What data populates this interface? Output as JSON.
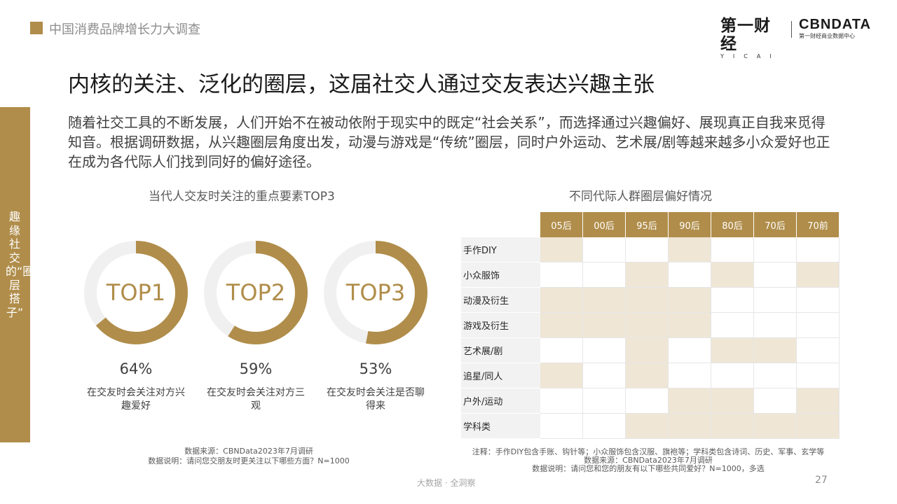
{
  "header": {
    "report_title": "中国消费品牌增长力大调查",
    "logo_yicai": "第一财经",
    "logo_yicai_sub": "YICAI",
    "logo_cbn": "CBNDATA",
    "logo_cbn_sub": "第一财经商业数据中心"
  },
  "headline": "内核的关注、泛化的圈层，这届社交人通过交友表达兴趣主张",
  "intro": "随着社交工具的不断发展，人们开始不在被动依附于现实中的既定“社会关系”，而选择通过兴趣偏好、展现真正自我来觅得知音。根据调研数据，从兴趣圈层角度出发，动漫与游戏是“传统”圈层，同时户外运动、艺术展/剧等越来越多小众爱好也正在成为各代际人们找到同好的偏好途径。",
  "side_label": "趣缘社交的“圈层搭子”",
  "colors": {
    "accent": "#b08d4a",
    "track": "#f0f0f0",
    "cell_on": "#efe6d6"
  },
  "chart_data": [
    {
      "type": "pie",
      "title": "当代人交友时关注的重点要素TOP3",
      "items": [
        {
          "rank": "TOP1",
          "value": 64,
          "value_label": "64%",
          "label": "在交友时会关注对方兴趣爱好"
        },
        {
          "rank": "TOP2",
          "value": 59,
          "value_label": "59%",
          "label": "在交友时会关注对方三观"
        },
        {
          "rank": "TOP3",
          "value": 53,
          "value_label": "53%",
          "label": "在交友时会关注是否聊得来"
        }
      ],
      "source_line1": "数据来源：CBNData2023年7月调研",
      "source_line2": "数据说明：请问您交朋友时更关注以下哪些方面？N=1000"
    },
    {
      "type": "heatmap",
      "title": "不同代际人群圈层偏好情况",
      "columns": [
        "05后",
        "00后",
        "95后",
        "90后",
        "80后",
        "70后",
        "70前"
      ],
      "rows": [
        {
          "label": "手作DIY",
          "cells": [
            1,
            0,
            0,
            1,
            0,
            0,
            0
          ]
        },
        {
          "label": "小众服饰",
          "cells": [
            0,
            0,
            1,
            0,
            1,
            0,
            1
          ]
        },
        {
          "label": "动漫及衍生",
          "cells": [
            1,
            1,
            1,
            1,
            0,
            0,
            0
          ]
        },
        {
          "label": "游戏及衍生",
          "cells": [
            1,
            1,
            1,
            1,
            0,
            0,
            0
          ]
        },
        {
          "label": "艺术展/剧",
          "cells": [
            0,
            0,
            1,
            0,
            1,
            1,
            0
          ]
        },
        {
          "label": "追星/同人",
          "cells": [
            1,
            0,
            1,
            0,
            0,
            0,
            0
          ]
        },
        {
          "label": "户外/运动",
          "cells": [
            0,
            0,
            0,
            1,
            1,
            0,
            1
          ]
        },
        {
          "label": "学科类",
          "cells": [
            0,
            0,
            1,
            1,
            1,
            1,
            1
          ]
        }
      ],
      "note": "注释：手作DIY包含手账、钩针等；小众服饰包含汉服、旗袍等；学科类包含诗词、历史、军事、玄学等",
      "source": "数据来源：CBNData2023年7月调研",
      "description": "数据说明：请问您和您的朋友有以下哪些共同爱好？N=1000，多选"
    }
  ],
  "footer": {
    "center": "大数据 · 全洞察",
    "page": "27"
  }
}
